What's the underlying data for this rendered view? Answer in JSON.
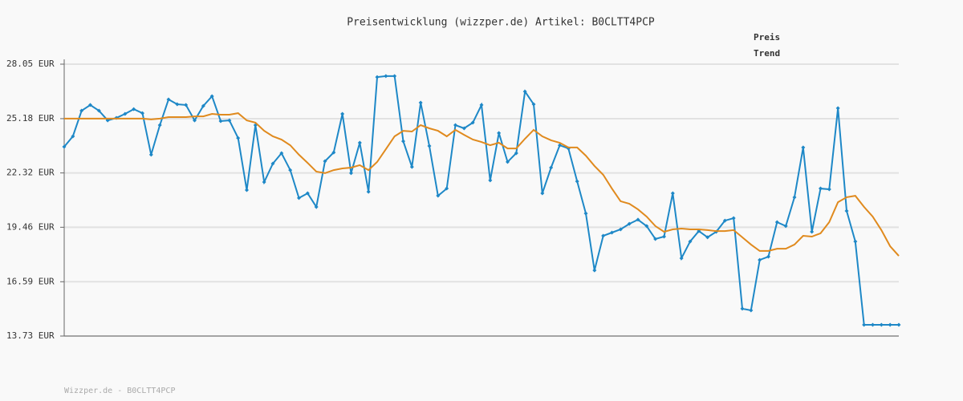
{
  "chart_data": {
    "type": "line",
    "title": "Preisentwicklung (wizzper.de) Artikel: B0CLTT4PCP",
    "footer": "Wizzper.de - B0CLTT4PCP",
    "ylim": [
      13.73,
      28.05
    ],
    "yticks": [
      {
        "value": 13.73,
        "label": "13.73 EUR"
      },
      {
        "value": 16.59,
        "label": "16.59 EUR"
      },
      {
        "value": 19.46,
        "label": "19.46 EUR"
      },
      {
        "value": 22.32,
        "label": "22.32 EUR"
      },
      {
        "value": 25.18,
        "label": "25.18 EUR"
      },
      {
        "value": 28.05,
        "label": "28.05 EUR"
      }
    ],
    "grid": true,
    "legend": "top-right",
    "series": [
      {
        "name": "Preis",
        "color": "#1e88c7",
        "markers": true,
        "values": [
          23.7,
          24.25,
          25.6,
          25.9,
          25.6,
          25.09,
          25.22,
          25.43,
          25.68,
          25.47,
          23.28,
          24.84,
          26.19,
          25.94,
          25.9,
          25.09,
          25.85,
          26.36,
          25.05,
          25.09,
          24.16,
          21.42,
          24.84,
          21.84,
          22.81,
          23.36,
          22.47,
          21.0,
          21.25,
          20.53,
          22.94,
          23.4,
          25.43,
          22.31,
          23.91,
          21.33,
          27.37,
          27.42,
          27.42,
          23.99,
          22.64,
          26.02,
          23.74,
          21.12,
          21.5,
          24.84,
          24.67,
          24.97,
          25.9,
          21.93,
          24.42,
          22.9,
          23.36,
          26.61,
          25.94,
          21.25,
          22.6,
          23.78,
          23.61,
          21.88,
          20.19,
          17.19,
          19.01,
          19.18,
          19.35,
          19.64,
          19.86,
          19.52,
          18.84,
          18.97,
          21.25,
          17.83,
          18.71,
          19.26,
          18.93,
          19.22,
          19.81,
          19.94,
          15.17,
          15.08,
          17.74,
          17.91,
          19.73,
          19.52,
          21.04,
          23.66,
          19.22,
          21.5,
          21.46,
          25.73,
          20.32,
          18.71,
          14.32,
          14.32,
          14.32,
          14.32,
          14.32
        ]
      },
      {
        "name": "Trend",
        "color": "#e08a1e",
        "markers": false,
        "values": [
          25.18,
          25.18,
          25.18,
          25.18,
          25.18,
          25.18,
          25.18,
          25.18,
          25.18,
          25.18,
          25.14,
          25.18,
          25.26,
          25.26,
          25.26,
          25.3,
          25.3,
          25.43,
          25.39,
          25.39,
          25.47,
          25.09,
          24.97,
          24.54,
          24.25,
          24.08,
          23.78,
          23.28,
          22.85,
          22.39,
          22.31,
          22.47,
          22.56,
          22.6,
          22.73,
          22.47,
          22.9,
          23.57,
          24.25,
          24.54,
          24.5,
          24.84,
          24.67,
          24.54,
          24.25,
          24.59,
          24.33,
          24.08,
          23.95,
          23.78,
          23.91,
          23.61,
          23.61,
          24.12,
          24.59,
          24.25,
          24.04,
          23.91,
          23.66,
          23.66,
          23.23,
          22.69,
          22.22,
          21.5,
          20.83,
          20.7,
          20.4,
          20.02,
          19.52,
          19.22,
          19.35,
          19.39,
          19.35,
          19.35,
          19.31,
          19.26,
          19.26,
          19.31,
          18.93,
          18.55,
          18.21,
          18.21,
          18.33,
          18.33,
          18.55,
          19.01,
          18.97,
          19.14,
          19.73,
          20.78,
          21.04,
          21.12,
          20.53,
          20.02,
          19.31,
          18.46,
          17.95
        ]
      }
    ]
  }
}
